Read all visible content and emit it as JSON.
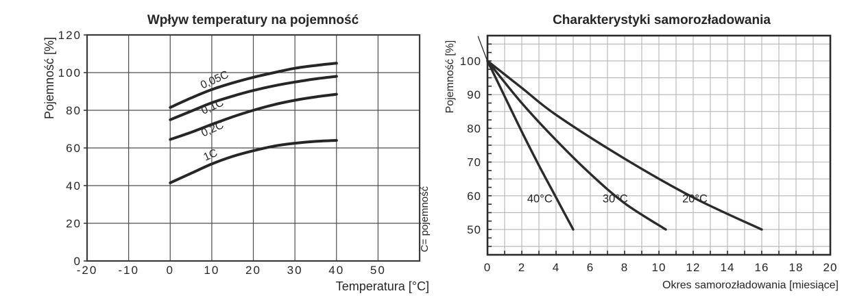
{
  "page": {
    "background_color": "#ffffff",
    "text_color": "#262626"
  },
  "chart_data": [
    {
      "type": "line",
      "title": "Wpływ temperatury na pojemność",
      "xlabel": "Temperatura [°C]",
      "ylabel": "Pojemność [%]",
      "side_note": "C= pojemność",
      "xlim": [
        -20,
        60
      ],
      "ylim": [
        0,
        120
      ],
      "x_grid_step": 10,
      "y_grid_step": 20,
      "x_tick_values": [
        -20,
        -10,
        0,
        10,
        20,
        30,
        40,
        50
      ],
      "x_tick_labels": [
        "-20",
        "-10",
        "0",
        "10",
        "20",
        "30",
        "40",
        "50"
      ],
      "y_tick_values": [
        0,
        20,
        40,
        60,
        80,
        100,
        120
      ],
      "y_tick_labels": [
        "0",
        "20",
        "40",
        "60",
        "80",
        "100",
        "120"
      ],
      "grid_on": true,
      "grid_color": "#4d4d4d",
      "border_color": "#3a3a3a",
      "line_color": "#262626",
      "series": [
        {
          "name": "0,05C",
          "points": [
            [
              0,
              81.5
            ],
            [
              5,
              86.5
            ],
            [
              10,
              91
            ],
            [
              15,
              94.5
            ],
            [
              20,
              97.5
            ],
            [
              25,
              100
            ],
            [
              30,
              102.3
            ],
            [
              35,
              103.8
            ],
            [
              40,
              105
            ]
          ]
        },
        {
          "name": "0,1C",
          "points": [
            [
              0,
              75
            ],
            [
              5,
              79.5
            ],
            [
              10,
              84
            ],
            [
              15,
              87.5
            ],
            [
              20,
              90.5
            ],
            [
              25,
              93
            ],
            [
              30,
              95
            ],
            [
              35,
              96.7
            ],
            [
              40,
              98
            ]
          ]
        },
        {
          "name": "0,2C",
          "points": [
            [
              0,
              64.5
            ],
            [
              5,
              68.3
            ],
            [
              10,
              72.5
            ],
            [
              15,
              76.5
            ],
            [
              20,
              80
            ],
            [
              25,
              83
            ],
            [
              30,
              85.3
            ],
            [
              35,
              87.1
            ],
            [
              40,
              88.5
            ]
          ]
        },
        {
          "name": "1C",
          "points": [
            [
              0,
              41.5
            ],
            [
              5,
              46.5
            ],
            [
              10,
              51.5
            ],
            [
              15,
              55.5
            ],
            [
              20,
              58.5
            ],
            [
              25,
              61
            ],
            [
              30,
              62.5
            ],
            [
              35,
              63.5
            ],
            [
              40,
              64
            ]
          ]
        }
      ],
      "series_labels": [
        {
          "text": "0,05C",
          "x": 11,
          "y": 94.5,
          "angle": -24
        },
        {
          "text": "0,1C",
          "x": 10.5,
          "y": 80.3,
          "angle": -24
        },
        {
          "text": "0,2C",
          "x": 10.5,
          "y": 68.4,
          "angle": -24
        },
        {
          "text": "1C",
          "x": 10,
          "y": 54.6,
          "angle": -24
        }
      ]
    },
    {
      "type": "line",
      "title": "Charakterystyki samorozładowania",
      "xlabel": "Okres samorozładowania [miesiące]",
      "ylabel": "Pojemność [%]",
      "side_note": "",
      "xlim": [
        0,
        20
      ],
      "ylim": [
        42.5,
        107.5
      ],
      "x_grid_step": 1,
      "y_grid_step": 5,
      "x_tick_values": [
        0,
        2,
        4,
        6,
        8,
        10,
        12,
        14,
        16,
        18,
        20
      ],
      "x_tick_labels": [
        "0",
        "2",
        "4",
        "6",
        "8",
        "10",
        "12",
        "14",
        "16",
        "18",
        "20"
      ],
      "y_tick_values": [
        50,
        60,
        70,
        80,
        90,
        100
      ],
      "y_tick_labels": [
        "50",
        "60",
        "70",
        "80",
        "90",
        "100"
      ],
      "x_minor_tick_step": 1,
      "y_minor_tick_step": 2.5,
      "grid_on": true,
      "grid_color": "#b5b5b5",
      "border_color": "#2b2b2b",
      "line_color": "#2b2b2b",
      "series": [
        {
          "name": "40°C",
          "points": [
            [
              0,
              100
            ],
            [
              1,
              89.5
            ],
            [
              2,
              79
            ],
            [
              3,
              69
            ],
            [
              4,
              59.5
            ],
            [
              5,
              50
            ]
          ]
        },
        {
          "name": "30°C",
          "points": [
            [
              0,
              100
            ],
            [
              2,
              87.5
            ],
            [
              4,
              76.5
            ],
            [
              6,
              66.5
            ],
            [
              8,
              57.8
            ],
            [
              10.4,
              50
            ]
          ]
        },
        {
          "name": "20°C",
          "points": [
            [
              0,
              100
            ],
            [
              2,
              92
            ],
            [
              4,
              84
            ],
            [
              8,
              71
            ],
            [
              12,
              59.5
            ],
            [
              16,
              50
            ]
          ]
        }
      ],
      "series_labels": [
        {
          "text": "40°C",
          "x": 3.05,
          "y": 58,
          "angle": 0
        },
        {
          "text": "30°C",
          "x": 7.45,
          "y": 58,
          "angle": 0
        },
        {
          "text": "20°C",
          "x": 12.1,
          "y": 58,
          "angle": 0
        }
      ],
      "overshoot_line": {
        "x1": -0.55,
        "y1": 107.3,
        "x2": 0.12,
        "y2": 98.2
      }
    }
  ]
}
